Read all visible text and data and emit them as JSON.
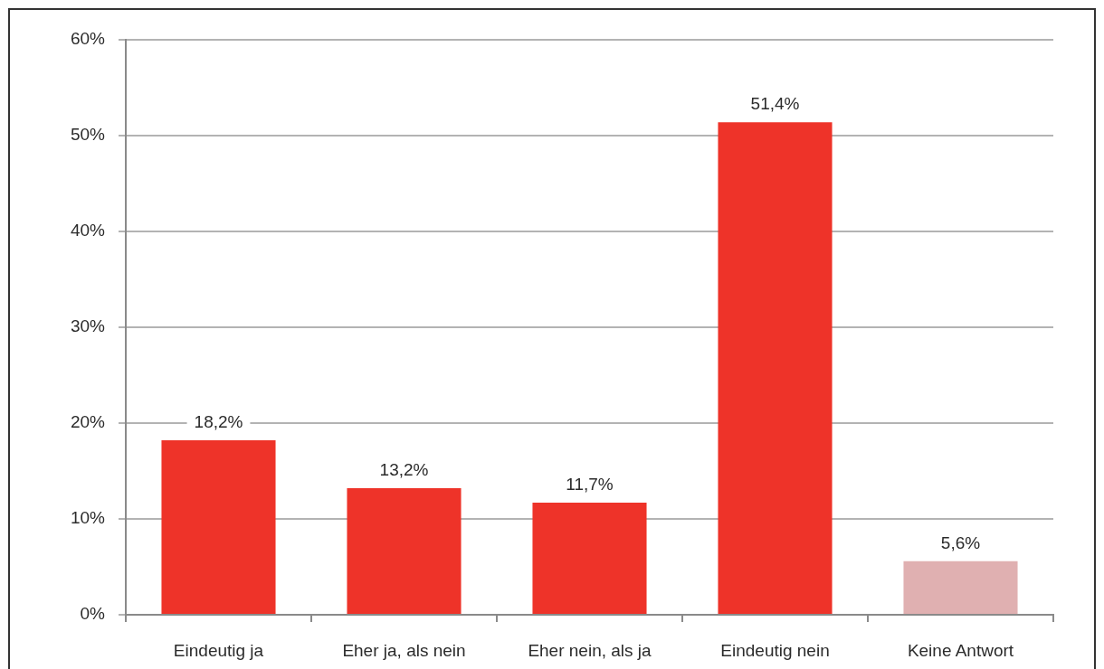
{
  "chart_data": {
    "type": "bar",
    "categories": [
      "Eindeutig ja",
      "Eher ja, als nein",
      "Eher nein, als ja",
      "Eindeutig nein",
      "Keine Antwort"
    ],
    "values": [
      18.2,
      13.2,
      11.7,
      51.4,
      5.6
    ],
    "colors": [
      "#ee3329",
      "#ee3329",
      "#ee3329",
      "#ee3329",
      "#e0b0b1"
    ],
    "value_labels": [
      "18,2%",
      "13,2%",
      "11,7%",
      "51,4%",
      "5,6%"
    ],
    "ylim": [
      0,
      60
    ],
    "yticks": [
      {
        "value": 0,
        "label": "0%"
      },
      {
        "value": 10,
        "label": "10%"
      },
      {
        "value": 20,
        "label": "20%"
      },
      {
        "value": 30,
        "label": "30%"
      },
      {
        "value": 40,
        "label": "40%"
      },
      {
        "value": 50,
        "label": "50%"
      },
      {
        "value": 60,
        "label": "60%"
      }
    ],
    "grid": "y"
  }
}
